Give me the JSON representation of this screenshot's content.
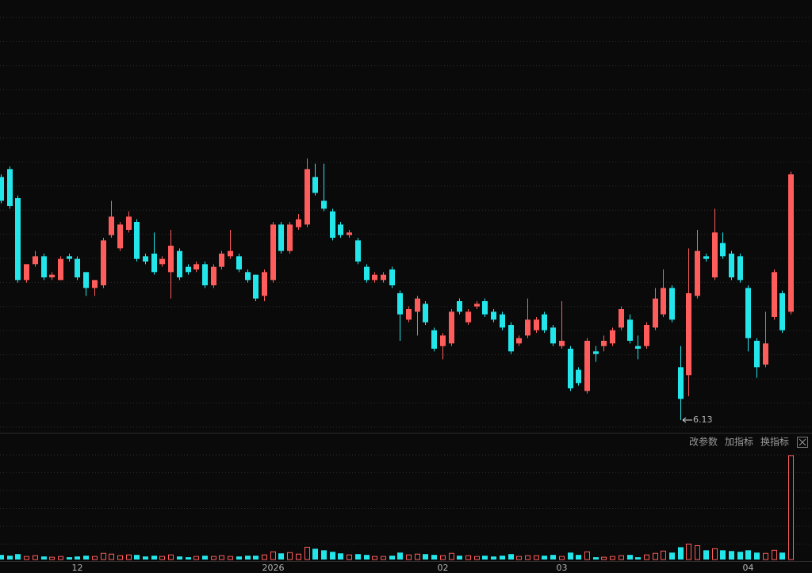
{
  "chart_data": {
    "type": "candlestick",
    "categories": [
      null,
      null,
      null,
      null,
      null,
      null,
      null,
      null,
      null,
      "12",
      null,
      null,
      null,
      null,
      null,
      null,
      null,
      null,
      null,
      null,
      null,
      null,
      null,
      null,
      null,
      null,
      null,
      null,
      null,
      null,
      null,
      null,
      "2026",
      null,
      null,
      null,
      null,
      null,
      null,
      null,
      null,
      null,
      null,
      null,
      null,
      null,
      null,
      null,
      null,
      null,
      null,
      null,
      "02",
      null,
      null,
      null,
      null,
      null,
      null,
      null,
      null,
      null,
      null,
      null,
      null,
      null,
      "03",
      null,
      null,
      null,
      null,
      null,
      null,
      null,
      null,
      null,
      null,
      null,
      null,
      null,
      null,
      null,
      null,
      null,
      null,
      null,
      null,
      null,
      "04",
      null,
      null,
      null,
      null,
      null
    ],
    "open": [
      7.05,
      7.08,
      6.97,
      6.66,
      6.72,
      6.75,
      6.67,
      6.66,
      6.75,
      6.74,
      6.69,
      6.63,
      6.64,
      6.83,
      6.78,
      6.85,
      6.88,
      6.75,
      6.76,
      6.72,
      6.69,
      6.77,
      6.71,
      6.7,
      6.72,
      6.64,
      6.71,
      6.75,
      6.75,
      6.69,
      6.68,
      6.6,
      6.66,
      6.87,
      6.77,
      6.86,
      6.87,
      7.05,
      6.96,
      6.92,
      6.87,
      6.83,
      6.81,
      6.71,
      6.66,
      6.66,
      6.7,
      6.61,
      6.51,
      6.54,
      6.57,
      6.47,
      6.41,
      6.42,
      6.58,
      6.5,
      6.56,
      6.58,
      6.54,
      6.53,
      6.49,
      6.42,
      6.45,
      6.47,
      6.53,
      6.48,
      6.41,
      6.4,
      6.32,
      6.24,
      6.39,
      6.41,
      6.42,
      6.48,
      6.51,
      6.41,
      6.41,
      6.48,
      6.53,
      6.63,
      6.33,
      6.3,
      6.6,
      6.75,
      6.67,
      6.8,
      6.76,
      6.75,
      6.63,
      6.43,
      6.34,
      6.52,
      6.61,
      6.54
    ],
    "high": [
      7.06,
      7.09,
      6.98,
      6.72,
      6.77,
      6.76,
      6.69,
      6.75,
      6.76,
      6.75,
      6.69,
      6.66,
      6.82,
      6.96,
      6.88,
      6.92,
      6.89,
      6.76,
      6.84,
      6.75,
      6.85,
      6.78,
      6.72,
      6.73,
      6.73,
      6.72,
      6.77,
      6.85,
      6.76,
      6.7,
      6.68,
      6.7,
      6.88,
      6.88,
      6.88,
      6.91,
      7.12,
      7.1,
      7.1,
      6.93,
      6.88,
      6.85,
      6.82,
      6.72,
      6.69,
      6.69,
      6.71,
      6.62,
      6.56,
      6.6,
      6.58,
      6.48,
      6.46,
      6.55,
      6.59,
      6.55,
      6.58,
      6.59,
      6.55,
      6.54,
      6.5,
      6.45,
      6.59,
      6.52,
      6.54,
      6.49,
      6.58,
      6.41,
      6.33,
      6.44,
      6.41,
      6.45,
      6.48,
      6.56,
      6.53,
      6.45,
      6.5,
      6.63,
      6.7,
      6.64,
      6.41,
      6.78,
      6.85,
      6.76,
      6.93,
      6.84,
      6.77,
      6.76,
      6.64,
      6.44,
      6.54,
      6.7,
      6.62,
      7.07
    ],
    "low": [
      6.95,
      6.93,
      6.65,
      6.65,
      6.71,
      6.66,
      6.66,
      6.66,
      6.73,
      6.66,
      6.6,
      6.6,
      6.63,
      6.82,
      6.77,
      6.84,
      6.73,
      6.72,
      6.68,
      6.71,
      6.59,
      6.66,
      6.68,
      6.69,
      6.63,
      6.63,
      6.7,
      6.74,
      6.69,
      6.65,
      6.58,
      6.58,
      6.65,
      6.76,
      6.76,
      6.85,
      6.86,
      6.98,
      6.92,
      6.81,
      6.82,
      6.82,
      6.72,
      6.65,
      6.65,
      6.65,
      6.63,
      6.43,
      6.5,
      6.45,
      6.49,
      6.39,
      6.36,
      6.41,
      6.53,
      6.49,
      6.55,
      6.52,
      6.5,
      6.47,
      6.38,
      6.41,
      6.44,
      6.46,
      6.46,
      6.41,
      6.4,
      6.24,
      6.26,
      6.23,
      6.35,
      6.39,
      6.41,
      6.47,
      6.42,
      6.36,
      6.4,
      6.47,
      6.52,
      6.5,
      6.13,
      6.22,
      6.59,
      6.73,
      6.66,
      6.74,
      6.66,
      6.65,
      6.39,
      6.29,
      6.33,
      6.51,
      6.46,
      6.53
    ],
    "close": [
      6.96,
      6.94,
      6.66,
      6.72,
      6.75,
      6.67,
      6.68,
      6.74,
      6.74,
      6.67,
      6.63,
      6.66,
      6.81,
      6.9,
      6.87,
      6.9,
      6.74,
      6.73,
      6.69,
      6.74,
      6.79,
      6.67,
      6.69,
      6.72,
      6.64,
      6.71,
      6.76,
      6.77,
      6.7,
      6.66,
      6.59,
      6.69,
      6.87,
      6.77,
      6.87,
      6.89,
      7.08,
      6.99,
      6.93,
      6.82,
      6.83,
      6.84,
      6.73,
      6.66,
      6.68,
      6.68,
      6.64,
      6.53,
      6.55,
      6.59,
      6.5,
      6.4,
      6.45,
      6.54,
      6.54,
      6.54,
      6.57,
      6.53,
      6.51,
      6.48,
      6.39,
      6.44,
      6.51,
      6.51,
      6.47,
      6.42,
      6.43,
      6.25,
      6.27,
      6.43,
      6.38,
      6.43,
      6.47,
      6.55,
      6.43,
      6.4,
      6.49,
      6.59,
      6.63,
      6.51,
      6.21,
      6.61,
      6.77,
      6.74,
      6.84,
      6.75,
      6.67,
      6.66,
      6.44,
      6.33,
      6.42,
      6.69,
      6.47,
      7.06
    ],
    "volume": [
      6,
      5,
      7,
      4,
      5,
      4,
      3,
      4,
      3,
      4,
      5,
      4,
      8,
      7,
      5,
      6,
      6,
      4,
      5,
      4,
      6,
      4,
      3,
      4,
      5,
      4,
      5,
      4,
      4,
      5,
      5,
      6,
      10,
      8,
      9,
      7,
      16,
      14,
      12,
      10,
      8,
      6,
      7,
      6,
      4,
      4,
      5,
      9,
      6,
      7,
      7,
      6,
      5,
      8,
      5,
      5,
      4,
      5,
      4,
      5,
      7,
      4,
      5,
      5,
      5,
      6,
      4,
      9,
      6,
      10,
      3,
      3,
      4,
      5,
      6,
      3,
      6,
      8,
      11,
      9,
      16,
      20,
      18,
      12,
      14,
      12,
      11,
      10,
      12,
      9,
      8,
      12,
      9,
      135
    ],
    "ylim": [
      6.085,
      7.72
    ],
    "volume_ylim": [
      0,
      140
    ],
    "up_color": "#ff5c5c",
    "down_color": "#22e6ea",
    "grid": true
  },
  "toolbar": {
    "buttons": [
      "改参数",
      "加指标",
      "换指标"
    ]
  }
}
